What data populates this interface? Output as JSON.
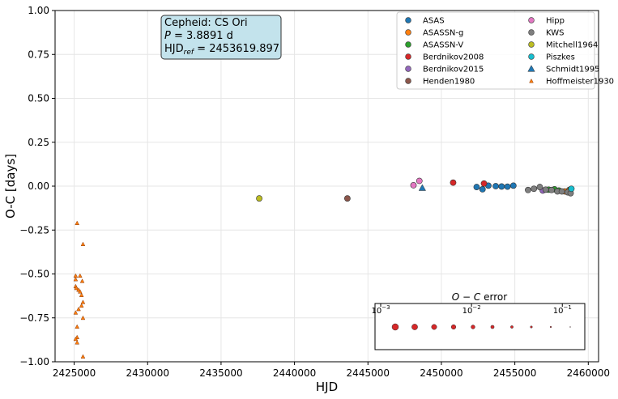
{
  "chart_data": {
    "type": "scatter",
    "xlabel": "HJD",
    "ylabel": "O-C [days]",
    "xlim": [
      2423700,
      2460700
    ],
    "ylim": [
      -1.0,
      1.0
    ],
    "grid": true,
    "x_ticks": [
      2425000,
      2430000,
      2435000,
      2440000,
      2445000,
      2450000,
      2455000,
      2460000
    ],
    "x_tick_labels": [
      "2425000",
      "2430000",
      "2435000",
      "2440000",
      "2445000",
      "2450000",
      "2455000",
      "2460000"
    ],
    "y_ticks": [
      -1.0,
      -0.75,
      -0.5,
      -0.25,
      0.0,
      0.25,
      0.5,
      0.75,
      1.0
    ],
    "y_tick_labels": [
      "−1.00",
      "−0.75",
      "−0.50",
      "−0.25",
      "0.00",
      "0.25",
      "0.50",
      "0.75",
      "1.00"
    ],
    "info_box": {
      "line1": "Cepheid: CS Ori",
      "line2_var": "P",
      "line2_rest": " = 3.8891 d",
      "line3_base": "HJD",
      "line3_sub": "ref",
      "line3_rest": " = 2453619.897",
      "face_color": "#c3e3ec"
    },
    "legend_position": "top-right",
    "series": [
      {
        "name": "ASAS",
        "color": "#1f77b4",
        "marker": "circle",
        "points": [
          [
            2452400,
            -0.005
          ],
          [
            2452800,
            -0.018
          ],
          [
            2453200,
            0.003
          ],
          [
            2453700,
            0.0
          ],
          [
            2454100,
            -0.002
          ],
          [
            2454500,
            -0.003
          ],
          [
            2454900,
            0.003
          ]
        ]
      },
      {
        "name": "ASASSN-g",
        "color": "#ff7f0e",
        "marker": "circle",
        "points": [
          [
            2458400,
            -0.03
          ],
          [
            2458700,
            -0.022
          ]
        ]
      },
      {
        "name": "ASASSN-V",
        "color": "#2ca02c",
        "marker": "circle",
        "points": [
          [
            2457300,
            -0.02
          ],
          [
            2457700,
            -0.018
          ],
          [
            2458000,
            -0.025
          ],
          [
            2458800,
            -0.018
          ]
        ]
      },
      {
        "name": "Berdnikov2008",
        "color": "#d62728",
        "marker": "circle",
        "points": [
          [
            2450800,
            0.02
          ],
          [
            2452900,
            0.015
          ]
        ]
      },
      {
        "name": "Berdnikov2015",
        "color": "#9467bd",
        "marker": "circle",
        "points": [
          [
            2456900,
            -0.025
          ]
        ]
      },
      {
        "name": "Henden1980",
        "color": "#8c564b",
        "marker": "circle",
        "points": [
          [
            2443600,
            -0.07
          ]
        ]
      },
      {
        "name": "Hipp",
        "color": "#e377c2",
        "marker": "circle",
        "points": [
          [
            2448100,
            0.005
          ],
          [
            2448500,
            0.03
          ]
        ]
      },
      {
        "name": "KWS",
        "color": "#7f7f7f",
        "marker": "circle",
        "points": [
          [
            2455900,
            -0.022
          ],
          [
            2456300,
            -0.015
          ],
          [
            2456700,
            -0.005
          ],
          [
            2457100,
            -0.02
          ],
          [
            2457500,
            -0.022
          ],
          [
            2457900,
            -0.03
          ],
          [
            2458200,
            -0.03
          ],
          [
            2458600,
            -0.035
          ],
          [
            2458800,
            -0.04
          ]
        ]
      },
      {
        "name": "Mitchell1964",
        "color": "#bcbd22",
        "marker": "circle",
        "points": [
          [
            2437600,
            -0.07
          ]
        ]
      },
      {
        "name": "Piszkes",
        "color": "#17becf",
        "marker": "circle",
        "points": [
          [
            2458850,
            -0.015
          ]
        ]
      },
      {
        "name": "Schmidt1995",
        "color": "#1f77b4",
        "marker": "triangle",
        "points": [
          [
            2448700,
            -0.01
          ]
        ]
      },
      {
        "name": "Hoffmeister1930",
        "color": "#ff7f0e",
        "marker": "small-triangle",
        "points": [
          [
            2425200,
            -0.21
          ],
          [
            2425600,
            -0.33
          ],
          [
            2425100,
            -0.51
          ],
          [
            2425400,
            -0.51
          ],
          [
            2425100,
            -0.53
          ],
          [
            2425550,
            -0.54
          ],
          [
            2425100,
            -0.57
          ],
          [
            2425150,
            -0.58
          ],
          [
            2425300,
            -0.59
          ],
          [
            2425400,
            -0.6
          ],
          [
            2425500,
            -0.62
          ],
          [
            2425600,
            -0.66
          ],
          [
            2425500,
            -0.68
          ],
          [
            2425300,
            -0.7
          ],
          [
            2425100,
            -0.72
          ],
          [
            2425600,
            -0.75
          ],
          [
            2425200,
            -0.8
          ],
          [
            2425200,
            -0.86
          ],
          [
            2425100,
            -0.87
          ],
          [
            2425200,
            -0.89
          ],
          [
            2425600,
            -0.97
          ]
        ]
      }
    ],
    "error_inset": {
      "title_var": "O − C",
      "title_rest": " error",
      "tick_labels": [
        {
          "base": "10",
          "exp": "−3",
          "value": 0.001
        },
        {
          "base": "10",
          "exp": "−2",
          "value": 0.01
        },
        {
          "base": "10",
          "exp": "−1",
          "value": 0.1
        }
      ],
      "xlim": [
        0.001,
        0.15
      ],
      "marker_color": "#d62728",
      "samples": [
        0.0015,
        0.0024,
        0.0038,
        0.006,
        0.0095,
        0.015,
        0.024,
        0.038,
        0.06,
        0.095
      ]
    }
  }
}
